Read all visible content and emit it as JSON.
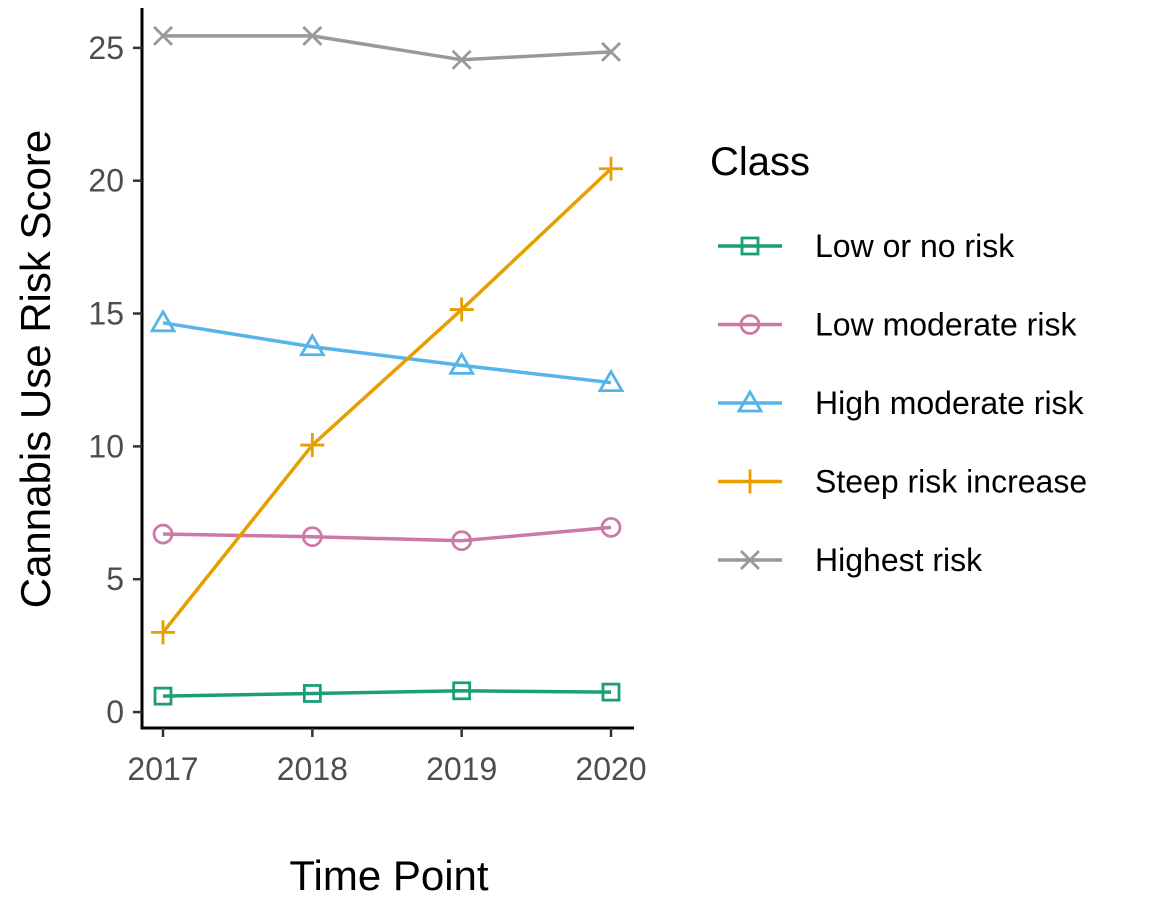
{
  "chart_data": {
    "type": "line",
    "title": "",
    "xlabel": "Time Point",
    "ylabel": "Cannabis Use Risk Score",
    "x": [
      "2017",
      "2018",
      "2019",
      "2020"
    ],
    "yticks": [
      "0",
      "5",
      "10",
      "15",
      "20",
      "25"
    ],
    "ylim": [
      -0.6,
      26.5
    ],
    "grid": false,
    "legend": {
      "title": "Class",
      "placement": "right"
    },
    "series": [
      {
        "name": "Low or no risk",
        "values": [
          0.6,
          0.7,
          0.8,
          0.75
        ],
        "color": "#1b9e77",
        "marker": "square"
      },
      {
        "name": "Low moderate risk",
        "values": [
          6.7,
          6.6,
          6.45,
          6.95
        ],
        "color": "#cc79a7",
        "marker": "circle"
      },
      {
        "name": "High moderate risk",
        "values": [
          14.65,
          13.75,
          13.05,
          12.4
        ],
        "color": "#56b4e9",
        "marker": "triangle"
      },
      {
        "name": "Steep risk increase",
        "values": [
          3.0,
          10.05,
          15.15,
          20.45
        ],
        "color": "#e69f00",
        "marker": "plus"
      },
      {
        "name": "Highest risk",
        "values": [
          25.45,
          25.45,
          24.55,
          24.85
        ],
        "color": "#999999",
        "marker": "cross"
      }
    ]
  }
}
